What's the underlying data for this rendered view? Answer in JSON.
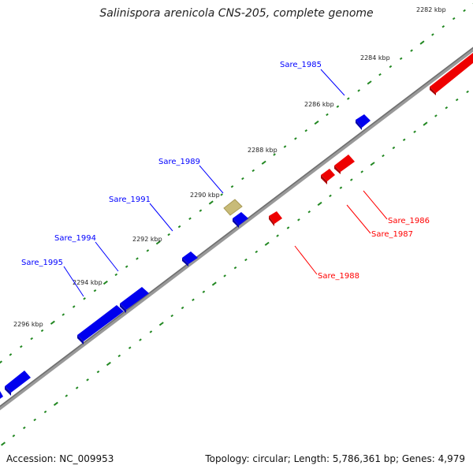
{
  "title": "Salinispora arenicola CNS-205, complete genome",
  "accession": "Accession: NC_009953",
  "summary": "Topology: circular; Length: 5,786,361 bp; Genes: 4,979",
  "colors": {
    "forward": "#0000ff",
    "reverse": "#ff0000",
    "other": "#c8bb78",
    "backbone": "#888888",
    "ticks": "#228822"
  },
  "scale_labels": [
    "2282 kbp",
    "2284 kbp",
    "2286 kbp",
    "2288 kbp",
    "2290 kbp",
    "2292 kbp",
    "2294 kbp",
    "2296 kbp"
  ],
  "gene_labels": {
    "forward": [
      "Sare_1985",
      "Sare_1989",
      "Sare_1991",
      "Sare_1994",
      "Sare_1995"
    ],
    "reverse": [
      "Sare_1986",
      "Sare_1987",
      "Sare_1988"
    ]
  }
}
